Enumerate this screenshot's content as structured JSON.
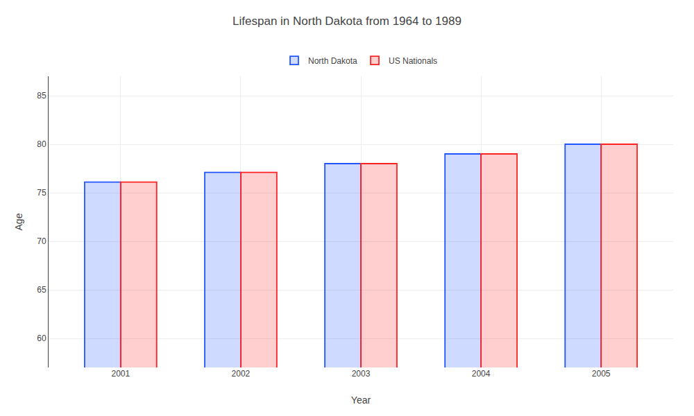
{
  "chart_data": {
    "type": "bar",
    "title": "Lifespan in North Dakota from 1964 to 1989",
    "x_label": "Year",
    "y_label": "Age",
    "categories": [
      "2001",
      "2002",
      "2003",
      "2004",
      "2005"
    ],
    "series": [
      {
        "name": "North Dakota",
        "color": "#2255ff",
        "values": [
          76.1,
          77.1,
          78.0,
          79.0,
          80.0
        ]
      },
      {
        "name": "US Nationals",
        "color": "#ff2222",
        "values": [
          76.1,
          77.1,
          78.0,
          79.0,
          80.0
        ]
      }
    ],
    "ylim": [
      57,
      87
    ],
    "yticks": [
      60,
      65,
      70,
      75,
      80,
      85
    ],
    "grid": true,
    "legend": "top"
  }
}
